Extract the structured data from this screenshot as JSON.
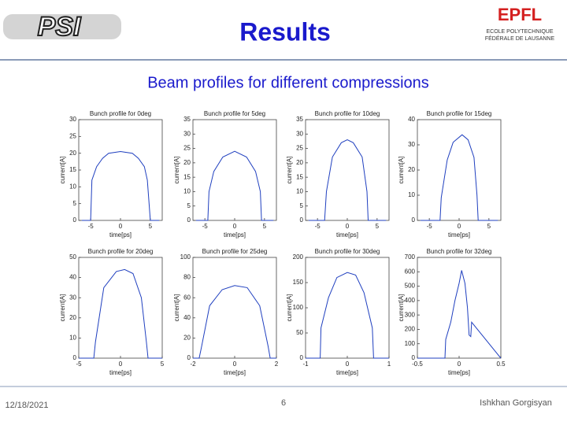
{
  "header": {
    "logo_left": "PSI",
    "title": "Results",
    "logo_right": "EPFL",
    "logo_right_sub": [
      "ECOLE POLYTECHNIQUE",
      "FÉDÉRALE DE LAUSANNE"
    ]
  },
  "subtitle": "Beam profiles for different compressions",
  "chart_data": [
    {
      "type": "line",
      "title": "Bunch profile for 0deg",
      "x_label": "time[ps]",
      "y_label": "current[A]",
      "xlim": [
        -7,
        7
      ],
      "xticks": [
        -5,
        0,
        5
      ],
      "ylim": [
        0,
        30
      ],
      "yticks": [
        0,
        5,
        10,
        15,
        20,
        25,
        30
      ],
      "x": [
        -6.5,
        -5,
        -4.8,
        -4,
        -3,
        -2,
        0,
        2,
        3,
        4,
        4.5,
        5,
        6.5
      ],
      "series": [
        {
          "color": "#1f3fbf",
          "values": [
            0,
            0,
            12,
            16,
            18.5,
            20,
            20.5,
            20,
            18.5,
            16,
            12,
            0,
            0
          ]
        }
      ]
    },
    {
      "type": "line",
      "title": "Bunch profile for 5deg",
      "x_label": "time[ps]",
      "y_label": "current[A]",
      "xlim": [
        -7,
        7
      ],
      "xticks": [
        -5,
        0,
        5
      ],
      "ylim": [
        0,
        35
      ],
      "yticks": [
        0,
        5,
        10,
        15,
        20,
        25,
        30,
        35
      ],
      "x": [
        -6.5,
        -4.5,
        -4.3,
        -3.5,
        -2,
        0,
        2,
        3.5,
        4.3,
        4.5,
        6.5
      ],
      "series": [
        {
          "color": "#1f3fbf",
          "values": [
            0,
            0,
            10,
            17,
            22,
            24,
            22,
            17,
            10,
            0,
            0
          ]
        }
      ]
    },
    {
      "type": "line",
      "title": "Bunch profile for 10deg",
      "x_label": "time[ps]",
      "y_label": "current[A]",
      "xlim": [
        -7,
        7
      ],
      "xticks": [
        -5,
        0,
        5
      ],
      "ylim": [
        0,
        35
      ],
      "yticks": [
        0,
        5,
        10,
        15,
        20,
        25,
        30,
        35
      ],
      "x": [
        -6.5,
        -3.8,
        -3.5,
        -2.5,
        -1,
        0,
        1,
        2.5,
        3.3,
        3.5,
        6.5
      ],
      "series": [
        {
          "color": "#1f3fbf",
          "values": [
            0,
            0,
            10,
            22,
            27,
            28,
            27,
            22,
            10,
            0,
            0
          ]
        }
      ]
    },
    {
      "type": "line",
      "title": "Bunch profile for 15deg",
      "x_label": "time[ps]",
      "y_label": "current[A]",
      "xlim": [
        -7,
        7
      ],
      "xticks": [
        -5,
        0,
        5
      ],
      "ylim": [
        0,
        40
      ],
      "yticks": [
        0,
        10,
        20,
        30,
        40
      ],
      "x": [
        -6.5,
        -3.2,
        -3,
        -2,
        -1,
        0.5,
        1.5,
        2.5,
        3,
        3.2,
        6.5
      ],
      "series": [
        {
          "color": "#1f3fbf",
          "values": [
            0,
            0,
            9,
            24,
            31,
            34,
            32,
            25,
            10,
            0,
            0
          ]
        }
      ]
    },
    {
      "type": "line",
      "title": "Bunch profile for 20deg",
      "x_label": "time[ps]",
      "y_label": "current[A]",
      "xlim": [
        -5,
        5
      ],
      "xticks": [
        -5,
        0,
        5
      ],
      "ylim": [
        0,
        50
      ],
      "yticks": [
        0,
        10,
        20,
        30,
        40,
        50
      ],
      "x": [
        -5,
        -3.2,
        -3,
        -2,
        -0.5,
        0.5,
        1.5,
        2.5,
        3.1,
        3.3,
        5
      ],
      "series": [
        {
          "color": "#1f3fbf",
          "values": [
            0,
            0,
            8,
            35,
            43,
            44,
            42,
            30,
            8,
            0,
            0
          ]
        }
      ]
    },
    {
      "type": "line",
      "title": "Bunch profile for 25deg",
      "x_label": "time[ps]",
      "y_label": "current[A]",
      "xlim": [
        -2,
        2
      ],
      "xticks": [
        -2,
        0,
        2
      ],
      "ylim": [
        0,
        100
      ],
      "yticks": [
        0,
        20,
        40,
        60,
        80,
        100
      ],
      "x": [
        -2,
        -1.7,
        -1.6,
        -1.2,
        -0.6,
        0,
        0.6,
        1.2,
        1.6,
        1.7,
        2
      ],
      "series": [
        {
          "color": "#1f3fbf",
          "values": [
            0,
            0,
            10,
            52,
            68,
            72,
            70,
            52,
            12,
            0,
            0
          ]
        }
      ]
    },
    {
      "type": "line",
      "title": "Bunch profile for 30deg",
      "x_label": "time[ps]",
      "y_label": "current[A]",
      "xlim": [
        -1,
        1
      ],
      "xticks": [
        -1,
        0,
        1
      ],
      "ylim": [
        0,
        200
      ],
      "yticks": [
        0,
        50,
        100,
        150,
        200
      ],
      "x": [
        -1,
        -0.65,
        -0.63,
        -0.45,
        -0.25,
        0,
        0.2,
        0.4,
        0.6,
        0.63,
        1
      ],
      "series": [
        {
          "color": "#1f3fbf",
          "values": [
            0,
            0,
            60,
            120,
            160,
            170,
            165,
            130,
            60,
            0,
            0
          ]
        }
      ]
    },
    {
      "type": "line",
      "title": "Bunch profile for 32deg",
      "x_label": "time[ps]",
      "y_label": "current[A]",
      "xlim": [
        -0.5,
        0.5
      ],
      "xticks": [
        -0.5,
        0,
        0.5
      ],
      "ylim": [
        0,
        700
      ],
      "yticks": [
        0,
        100,
        200,
        300,
        400,
        500,
        600,
        700
      ],
      "x": [
        -0.5,
        -0.17,
        -0.16,
        -0.1,
        -0.05,
        0,
        0.03,
        0.07,
        0.1,
        0.12,
        0.14,
        0.15,
        0.5
      ],
      "series": [
        {
          "color": "#1f3fbf",
          "values": [
            0,
            0,
            130,
            250,
            400,
            520,
            610,
            520,
            350,
            160,
            150,
            250,
            0
          ]
        }
      ]
    }
  ],
  "footer": {
    "date": "12/18/2021",
    "page": "6",
    "author": "Ishkhan Gorgisyan"
  }
}
